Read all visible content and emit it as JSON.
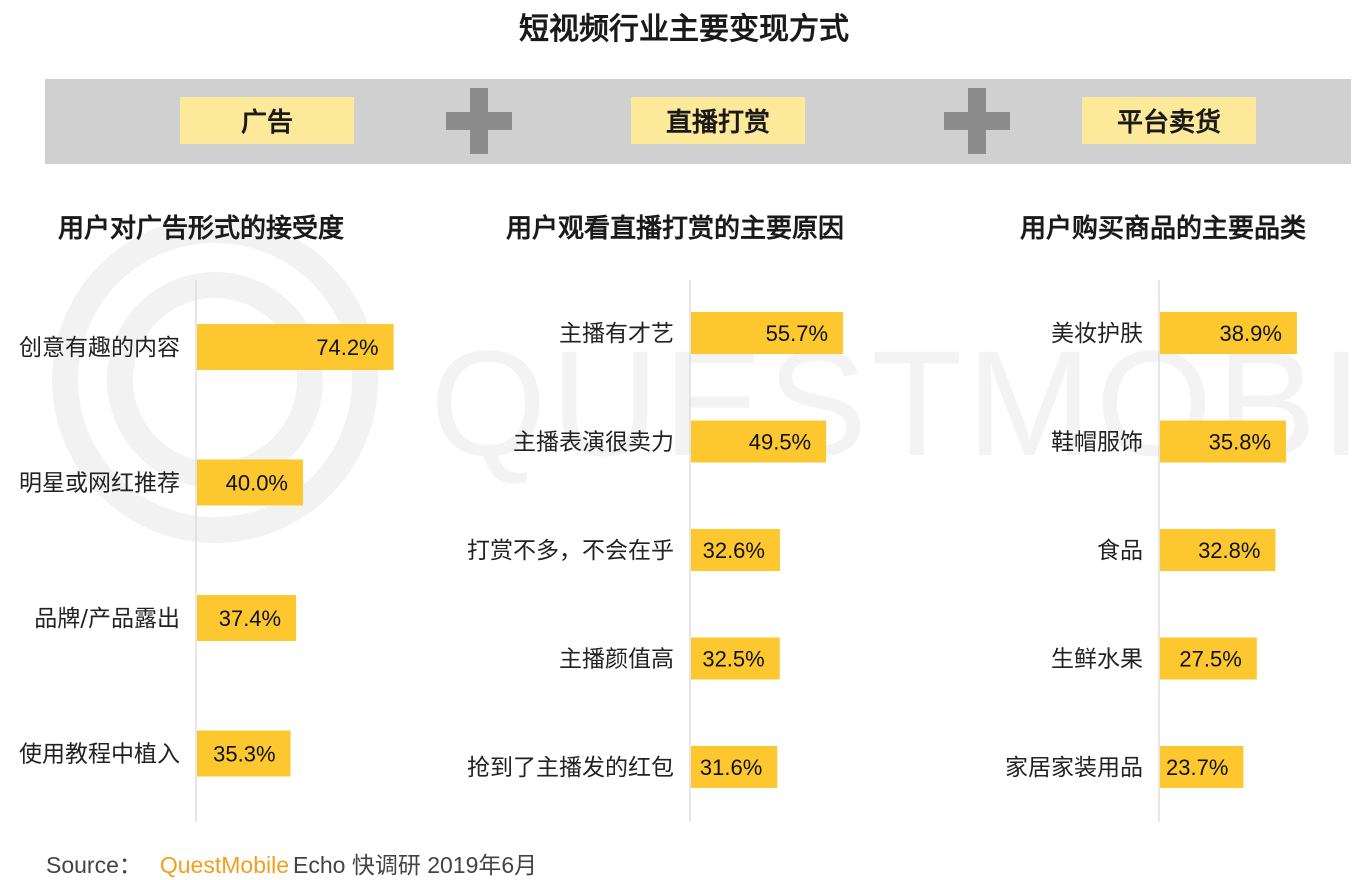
{
  "title": "短视频行业主要变现方式",
  "banner": {
    "items": [
      "广告",
      "直播打赏",
      "平台卖货"
    ],
    "plus_icon": "plus-icon"
  },
  "watermark": "QUESTMOBILE",
  "colors": {
    "bar": "#fdc82f",
    "banner_bg": "#d0d0d0",
    "pill": "#fde99a",
    "plus": "#8c8c8c",
    "brand": "#f0a020"
  },
  "source": {
    "label": "Source：",
    "brand": "QuestMobile",
    "text": "Echo 快调研 2019年6月"
  },
  "chart_data": [
    {
      "type": "bar",
      "orientation": "horizontal",
      "title": "用户对广告形式的接受度",
      "categories": [
        "创意有趣的内容",
        "明星或网红推荐",
        "品牌/产品露出",
        "使用教程中植入"
      ],
      "values": [
        74.2,
        40.0,
        37.4,
        35.3
      ],
      "labels": [
        "74.2%",
        "40.0%",
        "37.4%",
        "35.3%"
      ],
      "unit": "%"
    },
    {
      "type": "bar",
      "orientation": "horizontal",
      "title": "用户观看直播打赏的主要原因",
      "categories": [
        "主播有才艺",
        "主播表演很卖力",
        "打赏不多，不会在乎",
        "主播颜值高",
        "抢到了主播发的红包"
      ],
      "values": [
        55.7,
        49.5,
        32.6,
        32.5,
        31.6
      ],
      "labels": [
        "55.7%",
        "49.5%",
        "32.6%",
        "32.5%",
        "31.6%"
      ],
      "unit": "%"
    },
    {
      "type": "bar",
      "orientation": "horizontal",
      "title": "用户购买商品的主要品类",
      "categories": [
        "美妆护肤",
        "鞋帽服饰",
        "食品",
        "生鲜水果",
        "家居家装用品"
      ],
      "values": [
        38.9,
        35.8,
        32.8,
        27.5,
        23.7
      ],
      "labels": [
        "38.9%",
        "35.8%",
        "32.8%",
        "27.5%",
        "23.7%"
      ],
      "unit": "%"
    }
  ]
}
